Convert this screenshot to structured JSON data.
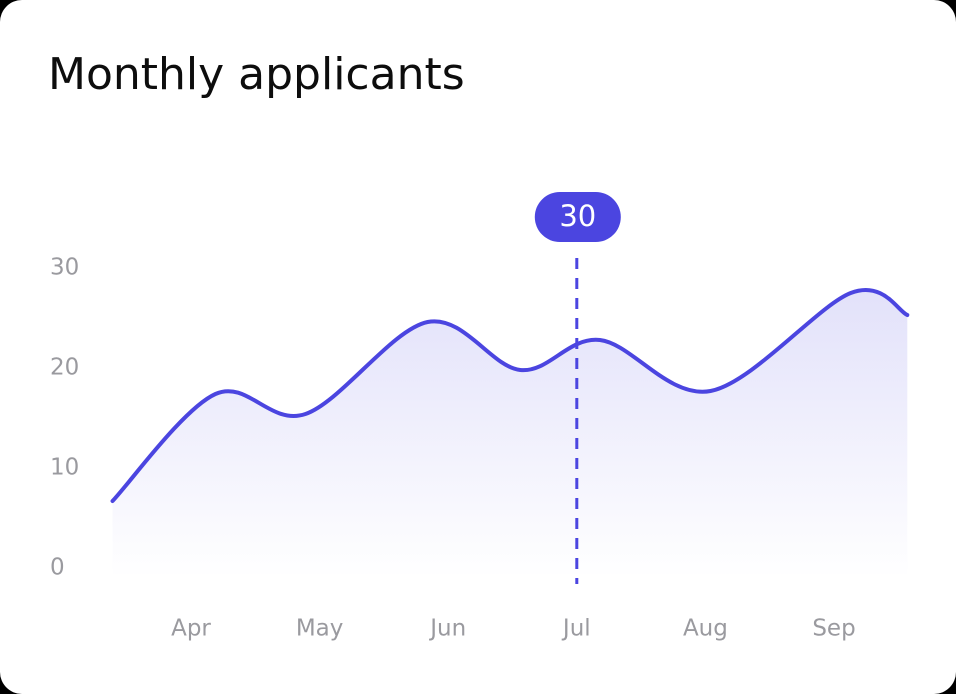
{
  "chart_data": {
    "type": "line",
    "title": "Monthly applicants",
    "x": [
      -0.61,
      0.19,
      0.89,
      1.84,
      2.56,
      3.18,
      4.04,
      5.13,
      5.57
    ],
    "series": [
      {
        "color": "#4b45e0",
        "values": [
          6.7,
          17.4,
          15.4,
          24.6,
          19.8,
          22.8,
          17.7,
          27.5,
          25.3
        ]
      }
    ],
    "xticks": [
      {
        "value": 0,
        "label": "Apr"
      },
      {
        "value": 1,
        "label": "May"
      },
      {
        "value": 2,
        "label": "Jun"
      },
      {
        "value": 3,
        "label": "Jul"
      },
      {
        "value": 4,
        "label": "Aug"
      },
      {
        "value": 5,
        "label": "Sep"
      }
    ],
    "ylim": [
      0,
      30
    ],
    "yticks": [
      0,
      10,
      20,
      30
    ],
    "highlight": {
      "x": 3,
      "value": 30
    }
  }
}
